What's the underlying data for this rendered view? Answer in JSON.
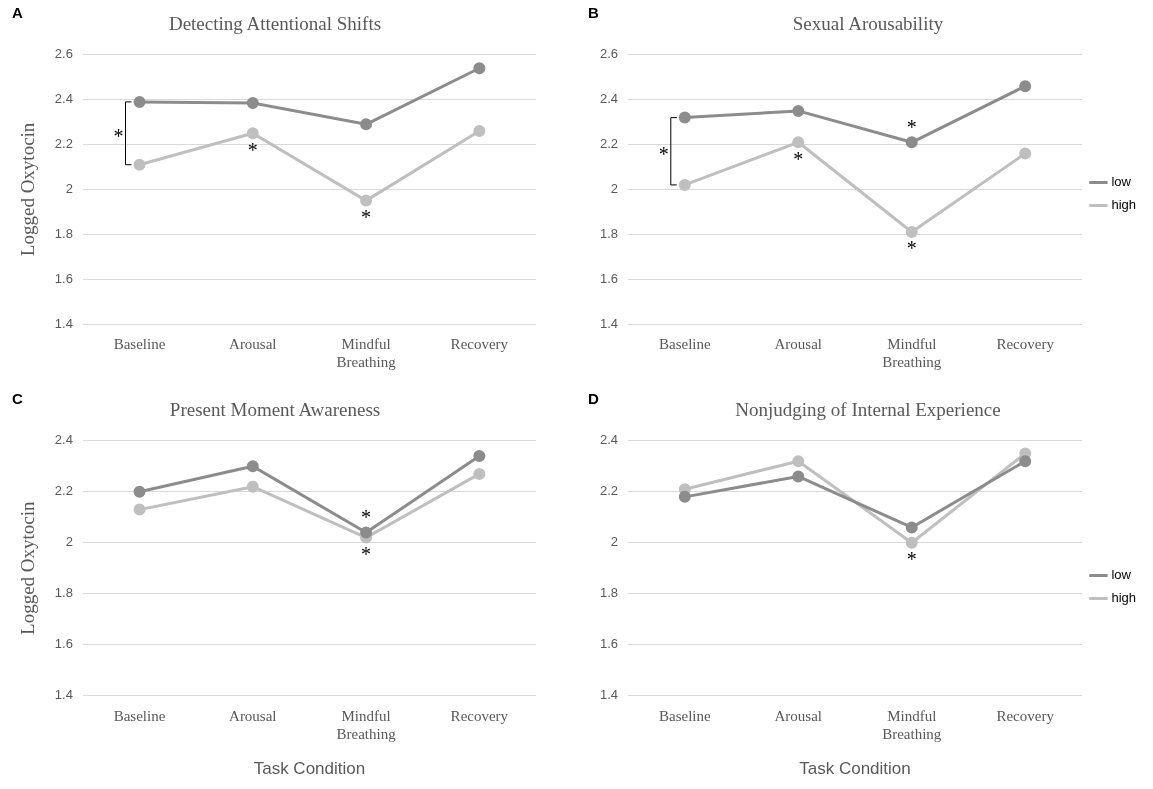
{
  "chart_data": [
    {
      "type": "line",
      "title": "Detecting Attentional Shifts",
      "ylabel": "Logged Oxytocin",
      "categories": [
        "Baseline",
        "Arousal",
        "Mindful Breathing",
        "Recovery"
      ],
      "series": [
        {
          "color": "#8c8c8c",
          "values": [
            2.39,
            2.385,
            2.29,
            2.54
          ]
        },
        {
          "color": "#bfbfbf",
          "values": [
            2.11,
            2.25,
            1.95,
            2.26
          ]
        }
      ],
      "ylim": [
        1.4,
        2.6
      ],
      "yticks": [
        1.4,
        1.6,
        1.8,
        2,
        2.2,
        2.4,
        2.6
      ],
      "grid": "y",
      "legend": false,
      "marker": "circle",
      "annotations": [
        "A",
        "*",
        {
          "text": "*",
          "x": "Arousal",
          "y": 2.25
        },
        {
          "text": "*",
          "x": "Mindful Breathing",
          "y": 1.95
        }
      ]
    },
    {
      "type": "line",
      "title": "Sexual Arousability",
      "categories": [
        "Baseline",
        "Arousal",
        "Mindful Breathing",
        "Recovery"
      ],
      "series": [
        {
          "name": "low",
          "color": "#8c8c8c",
          "values": [
            2.32,
            2.35,
            2.21,
            2.46
          ]
        },
        {
          "name": "high",
          "color": "#bfbfbf",
          "values": [
            2.02,
            2.21,
            1.81,
            2.16
          ]
        }
      ],
      "ylim": [
        1.4,
        2.6
      ],
      "yticks": [
        1.4,
        1.6,
        1.8,
        2,
        2.2,
        2.4,
        2.6
      ],
      "grid": "y",
      "legend": "right",
      "marker": "circle",
      "annotations": [
        "B",
        "*",
        {
          "text": "*",
          "x": "Arousal",
          "y": 2.21
        },
        {
          "text": "*",
          "x": "Mindful Breathing",
          "y": 2.21
        },
        {
          "text": "*",
          "x": "Mindful Breathing",
          "y": 1.81
        }
      ]
    },
    {
      "type": "line",
      "title": "Present Moment Awareness",
      "ylabel": "Logged Oxytocin",
      "xlabel": "Task Condition",
      "categories": [
        "Baseline",
        "Arousal",
        "Mindful Breathing",
        "Recovery"
      ],
      "series": [
        {
          "color": "#8c8c8c",
          "values": [
            2.2,
            2.3,
            2.04,
            2.34
          ]
        },
        {
          "color": "#bfbfbf",
          "values": [
            2.13,
            2.22,
            2.02,
            2.27
          ]
        }
      ],
      "ylim": [
        1.4,
        2.4
      ],
      "yticks": [
        1.4,
        1.6,
        1.8,
        2,
        2.2,
        2.4
      ],
      "grid": "y",
      "legend": false,
      "marker": "circle",
      "annotations": [
        "C",
        {
          "text": "*",
          "x": "Mindful Breathing",
          "y": 2.04
        },
        {
          "text": "*",
          "x": "Mindful Breathing",
          "y": 2.02
        }
      ]
    },
    {
      "type": "line",
      "title": "Nonjudging of Internal Experience",
      "xlabel": "Task Condition",
      "categories": [
        "Baseline",
        "Arousal",
        "Mindful Breathing",
        "Recovery"
      ],
      "series": [
        {
          "name": "low",
          "color": "#8c8c8c",
          "values": [
            2.18,
            2.26,
            2.06,
            2.32
          ]
        },
        {
          "name": "high",
          "color": "#bfbfbf",
          "values": [
            2.21,
            2.32,
            2.0,
            2.35
          ]
        }
      ],
      "ylim": [
        1.4,
        2.4
      ],
      "yticks": [
        1.4,
        1.6,
        1.8,
        2,
        2.2,
        2.4
      ],
      "grid": "y",
      "legend": "right",
      "marker": "circle",
      "annotations": [
        "D",
        {
          "text": "*",
          "x": "Mindful Breathing",
          "y": 2.0
        }
      ]
    }
  ]
}
